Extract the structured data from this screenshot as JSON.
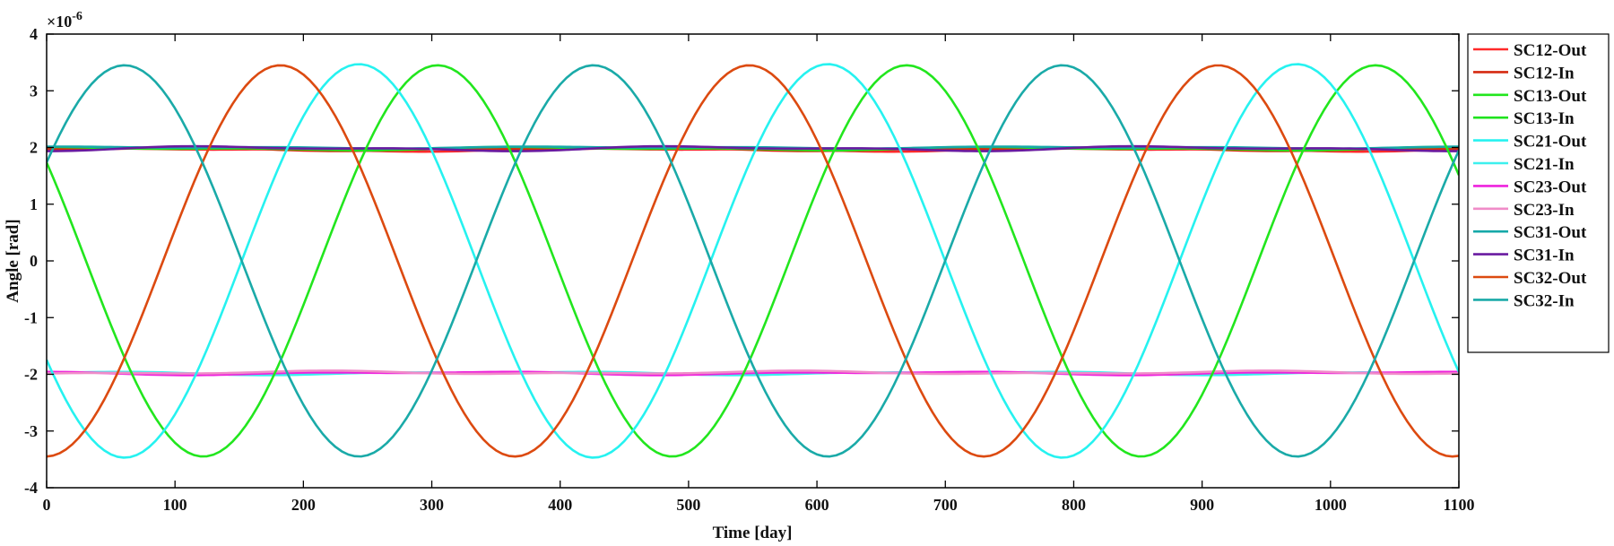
{
  "chart_data": {
    "type": "line",
    "xlabel": "Time [day]",
    "ylabel": "Angle [rad]",
    "y_multiplier": "×10",
    "y_exponent": "-6",
    "xlim": [
      0,
      1100
    ],
    "ylim": [
      -4,
      4
    ],
    "x_ticks": [
      "0",
      "100",
      "200",
      "300",
      "400",
      "500",
      "600",
      "700",
      "800",
      "900",
      "1000",
      "1100"
    ],
    "y_ticks": [
      "-4",
      "-3",
      "-2",
      "-1",
      "0",
      "1",
      "2",
      "3",
      "4"
    ],
    "grid": false,
    "legend_position": "right",
    "period_days": 365.25,
    "sample_step_days": 5,
    "series": [
      {
        "name": "SC12-Out",
        "color": "#ff2a2a",
        "offset": 1.96,
        "amplitude": 0.02,
        "phase_deg": 0,
        "ripple_amp": 0.015,
        "ripple_phase_deg": 40
      },
      {
        "name": "SC12-In",
        "color": "#d52a10",
        "offset": 1.97,
        "amplitude": 0.02,
        "phase_deg": 20,
        "ripple_amp": 0.015,
        "ripple_phase_deg": 200
      },
      {
        "name": "SC13-Out",
        "color": "#22e61e",
        "offset": 0,
        "amplitude": 3.45,
        "phase_deg": 149.8
      },
      {
        "name": "SC13-In",
        "color": "#1fe31e",
        "offset": 1.98,
        "amplitude": 0.02,
        "phase_deg": 60,
        "ripple_amp": 0.015,
        "ripple_phase_deg": 120
      },
      {
        "name": "SC21-Out",
        "color": "#26f2f0",
        "offset": 0,
        "amplitude": 3.47,
        "phase_deg": 210.2
      },
      {
        "name": "SC21-In",
        "color": "#3cf0ee",
        "offset": -1.98,
        "amplitude": 0.02,
        "phase_deg": 90,
        "ripple_amp": 0.015,
        "ripple_phase_deg": 300
      },
      {
        "name": "SC23-Out",
        "color": "#ee22dd",
        "offset": -1.98,
        "amplitude": 0.02,
        "phase_deg": 150,
        "ripple_amp": 0.015,
        "ripple_phase_deg": 60
      },
      {
        "name": "SC23-In",
        "color": "#f08cc8",
        "offset": -1.97,
        "amplitude": 0.02,
        "phase_deg": 240,
        "ripple_amp": 0.015,
        "ripple_phase_deg": 10
      },
      {
        "name": "SC31-Out",
        "color": "#15a8a8",
        "offset": 2.0,
        "amplitude": 0.01,
        "phase_deg": 30,
        "ripple_amp": 0.01,
        "ripple_phase_deg": 90
      },
      {
        "name": "SC31-In",
        "color": "#6a1aa0",
        "offset": 1.98,
        "amplitude": 0.03,
        "phase_deg": 300,
        "ripple_amp": 0.02,
        "ripple_phase_deg": 250
      },
      {
        "name": "SC32-Out",
        "color": "#dc4a10",
        "offset": 0,
        "amplitude": 3.45,
        "phase_deg": 270.6
      },
      {
        "name": "SC32-In",
        "color": "#1aaaa8",
        "offset": 0,
        "amplitude": 3.45,
        "phase_deg": 30.2
      }
    ]
  }
}
